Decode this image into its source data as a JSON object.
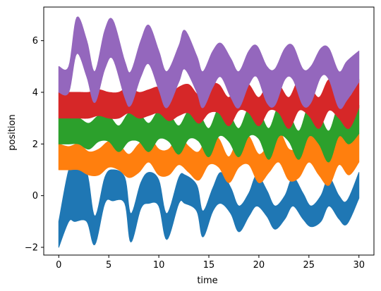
{
  "chart_data": {
    "type": "line",
    "title": "",
    "xlabel": "time",
    "ylabel": "position",
    "xlim": [
      -1.5,
      31.5
    ],
    "ylim": [
      -2.3,
      7.3
    ],
    "xticks": [
      0,
      5,
      10,
      15,
      20,
      25,
      30
    ],
    "yticks": [
      -2,
      0,
      2,
      4,
      6
    ],
    "grid": false,
    "legend": "none",
    "description_note": "",
    "series": [
      {
        "color": "#1f77b4",
        "band": {
          "x": [
            0,
            1,
            1.6,
            2.8,
            3.6,
            4.6,
            5.4,
            6.6,
            7.2,
            8.2,
            9.0,
            10.0,
            10.8,
            12.0,
            12.6,
            13.8,
            14.4,
            15.4,
            16.2,
            17.2,
            18.0,
            19.0,
            19.8,
            20.8,
            21.6,
            22.6,
            23.4,
            24.4,
            25.2,
            26.2,
            27.0,
            28.0,
            28.8,
            30
          ],
          "upper": [
            -1.0,
            1.0,
            1.0,
            0.9,
            -0.8,
            0.7,
            1.0,
            0.7,
            -0.7,
            0.5,
            0.9,
            0.6,
            -0.7,
            0.7,
            0.8,
            0.4,
            -0.6,
            0.3,
            0.9,
            0.3,
            -0.4,
            0.1,
            0.8,
            0.2,
            -0.4,
            0.0,
            0.7,
            0.1,
            -0.4,
            0.0,
            0.7,
            0.0,
            -0.2,
            0.9
          ],
          "lower": [
            -2.0,
            -1.0,
            -1.0,
            -1.0,
            -1.9,
            -0.3,
            -0.2,
            -0.3,
            -1.8,
            -0.5,
            -0.3,
            -0.4,
            -1.7,
            -0.3,
            -0.3,
            -0.6,
            -1.6,
            -0.6,
            -0.3,
            -0.7,
            -1.4,
            -0.8,
            -0.4,
            -0.8,
            -1.3,
            -0.9,
            -0.4,
            -0.9,
            -1.2,
            -1.0,
            -0.4,
            -0.9,
            -1.1,
            -0.1
          ]
        }
      },
      {
        "color": "#ff7f0e",
        "band": {
          "x": [
            0,
            1,
            2,
            3,
            4,
            5,
            6,
            7,
            8,
            9,
            10,
            11,
            12,
            13,
            14,
            15,
            16,
            17,
            18,
            19,
            20,
            21,
            22,
            23,
            24,
            25,
            26,
            27,
            28,
            29,
            30
          ],
          "upper": [
            2.0,
            1.9,
            2.0,
            1.7,
            1.8,
            2.1,
            2.0,
            1.6,
            2.0,
            2.3,
            1.8,
            1.8,
            2.3,
            1.9,
            1.7,
            2.4,
            2.2,
            1.5,
            2.3,
            2.3,
            1.6,
            2.0,
            2.5,
            1.8,
            1.9,
            2.6,
            2.0,
            1.6,
            2.5,
            2.1,
            2.4
          ],
          "lower": [
            1.0,
            1.0,
            1.0,
            0.8,
            0.8,
            1.1,
            1.0,
            0.7,
            0.9,
            1.3,
            0.8,
            0.8,
            1.2,
            0.9,
            0.6,
            1.2,
            1.1,
            0.5,
            1.1,
            1.2,
            0.5,
            0.9,
            1.3,
            0.6,
            0.7,
            1.3,
            0.8,
            0.4,
            1.2,
            0.8,
            1.3
          ]
        }
      },
      {
        "color": "#2ca02c",
        "band": {
          "x": [
            0,
            1,
            2,
            3,
            4,
            5,
            6,
            7,
            8,
            9,
            10,
            11,
            12,
            13,
            14,
            15,
            16,
            17,
            18,
            19,
            20,
            21,
            22,
            23,
            24,
            25,
            26,
            27,
            28,
            29,
            30
          ],
          "upper": [
            3.0,
            3.0,
            3.0,
            2.8,
            3.1,
            3.1,
            2.7,
            3.2,
            3.2,
            2.8,
            3.3,
            3.2,
            2.7,
            3.3,
            3.2,
            2.6,
            3.4,
            3.2,
            2.6,
            3.4,
            3.3,
            2.6,
            3.5,
            3.2,
            2.5,
            3.5,
            3.2,
            2.5,
            3.5,
            3.1,
            3.5
          ],
          "lower": [
            2.0,
            2.0,
            2.0,
            1.8,
            2.1,
            2.1,
            1.7,
            2.1,
            2.1,
            1.7,
            2.2,
            2.1,
            1.6,
            2.2,
            2.1,
            1.5,
            2.3,
            2.1,
            1.5,
            2.3,
            2.2,
            1.4,
            2.3,
            2.1,
            1.4,
            2.3,
            2.0,
            1.3,
            2.3,
            2.0,
            2.4
          ]
        }
      },
      {
        "color": "#d62728",
        "band": {
          "x": [
            0,
            1,
            2,
            3,
            4,
            5,
            6,
            7,
            8,
            9,
            10,
            11,
            12,
            13,
            14,
            15,
            16,
            17,
            18,
            19,
            20,
            21,
            22,
            23,
            24,
            25,
            26,
            27,
            28,
            29,
            30
          ],
          "upper": [
            4.0,
            4.0,
            4.0,
            4.0,
            4.1,
            4.0,
            4.0,
            4.2,
            4.0,
            4.1,
            4.2,
            3.9,
            4.2,
            4.3,
            3.9,
            4.3,
            4.3,
            3.8,
            4.4,
            4.3,
            3.8,
            4.4,
            4.3,
            3.8,
            4.5,
            4.3,
            3.8,
            4.5,
            4.2,
            3.8,
            4.5
          ],
          "lower": [
            3.0,
            3.0,
            3.0,
            3.0,
            3.1,
            3.0,
            3.0,
            3.2,
            3.0,
            3.1,
            3.2,
            2.9,
            3.1,
            3.2,
            2.8,
            3.2,
            3.2,
            2.7,
            3.3,
            3.2,
            2.7,
            3.3,
            3.2,
            2.6,
            3.3,
            3.1,
            2.6,
            3.3,
            3.0,
            2.6,
            3.4
          ]
        }
      },
      {
        "color": "#9467bd",
        "band": {
          "x": [
            0,
            1,
            1.8,
            2.8,
            3.6,
            4.6,
            5.4,
            6.6,
            7.2,
            8.2,
            9.0,
            10.0,
            10.8,
            12.0,
            12.6,
            13.8,
            14.4,
            15.4,
            16.2,
            17.2,
            18.0,
            19.0,
            19.8,
            20.8,
            21.6,
            22.6,
            23.4,
            24.4,
            25.2,
            26.2,
            27.0,
            28.0,
            28.8,
            30
          ],
          "upper": [
            5.0,
            5.0,
            6.9,
            6.0,
            4.8,
            6.4,
            6.8,
            5.2,
            4.8,
            6.0,
            6.6,
            5.6,
            4.8,
            5.8,
            6.4,
            5.4,
            4.8,
            5.6,
            5.9,
            5.3,
            4.8,
            5.6,
            5.8,
            5.0,
            4.9,
            5.7,
            5.8,
            4.9,
            5.0,
            5.7,
            5.7,
            4.8,
            5.2,
            5.6
          ],
          "lower": [
            4.0,
            4.0,
            5.5,
            4.6,
            3.6,
            4.9,
            5.3,
            3.8,
            3.5,
            4.6,
            5.1,
            4.1,
            3.4,
            4.4,
            4.9,
            4.0,
            3.4,
            4.2,
            4.6,
            3.8,
            3.4,
            4.3,
            4.6,
            3.6,
            3.5,
            4.5,
            4.5,
            3.5,
            3.6,
            4.6,
            4.5,
            3.4,
            3.7,
            4.4
          ]
        }
      }
    ]
  }
}
